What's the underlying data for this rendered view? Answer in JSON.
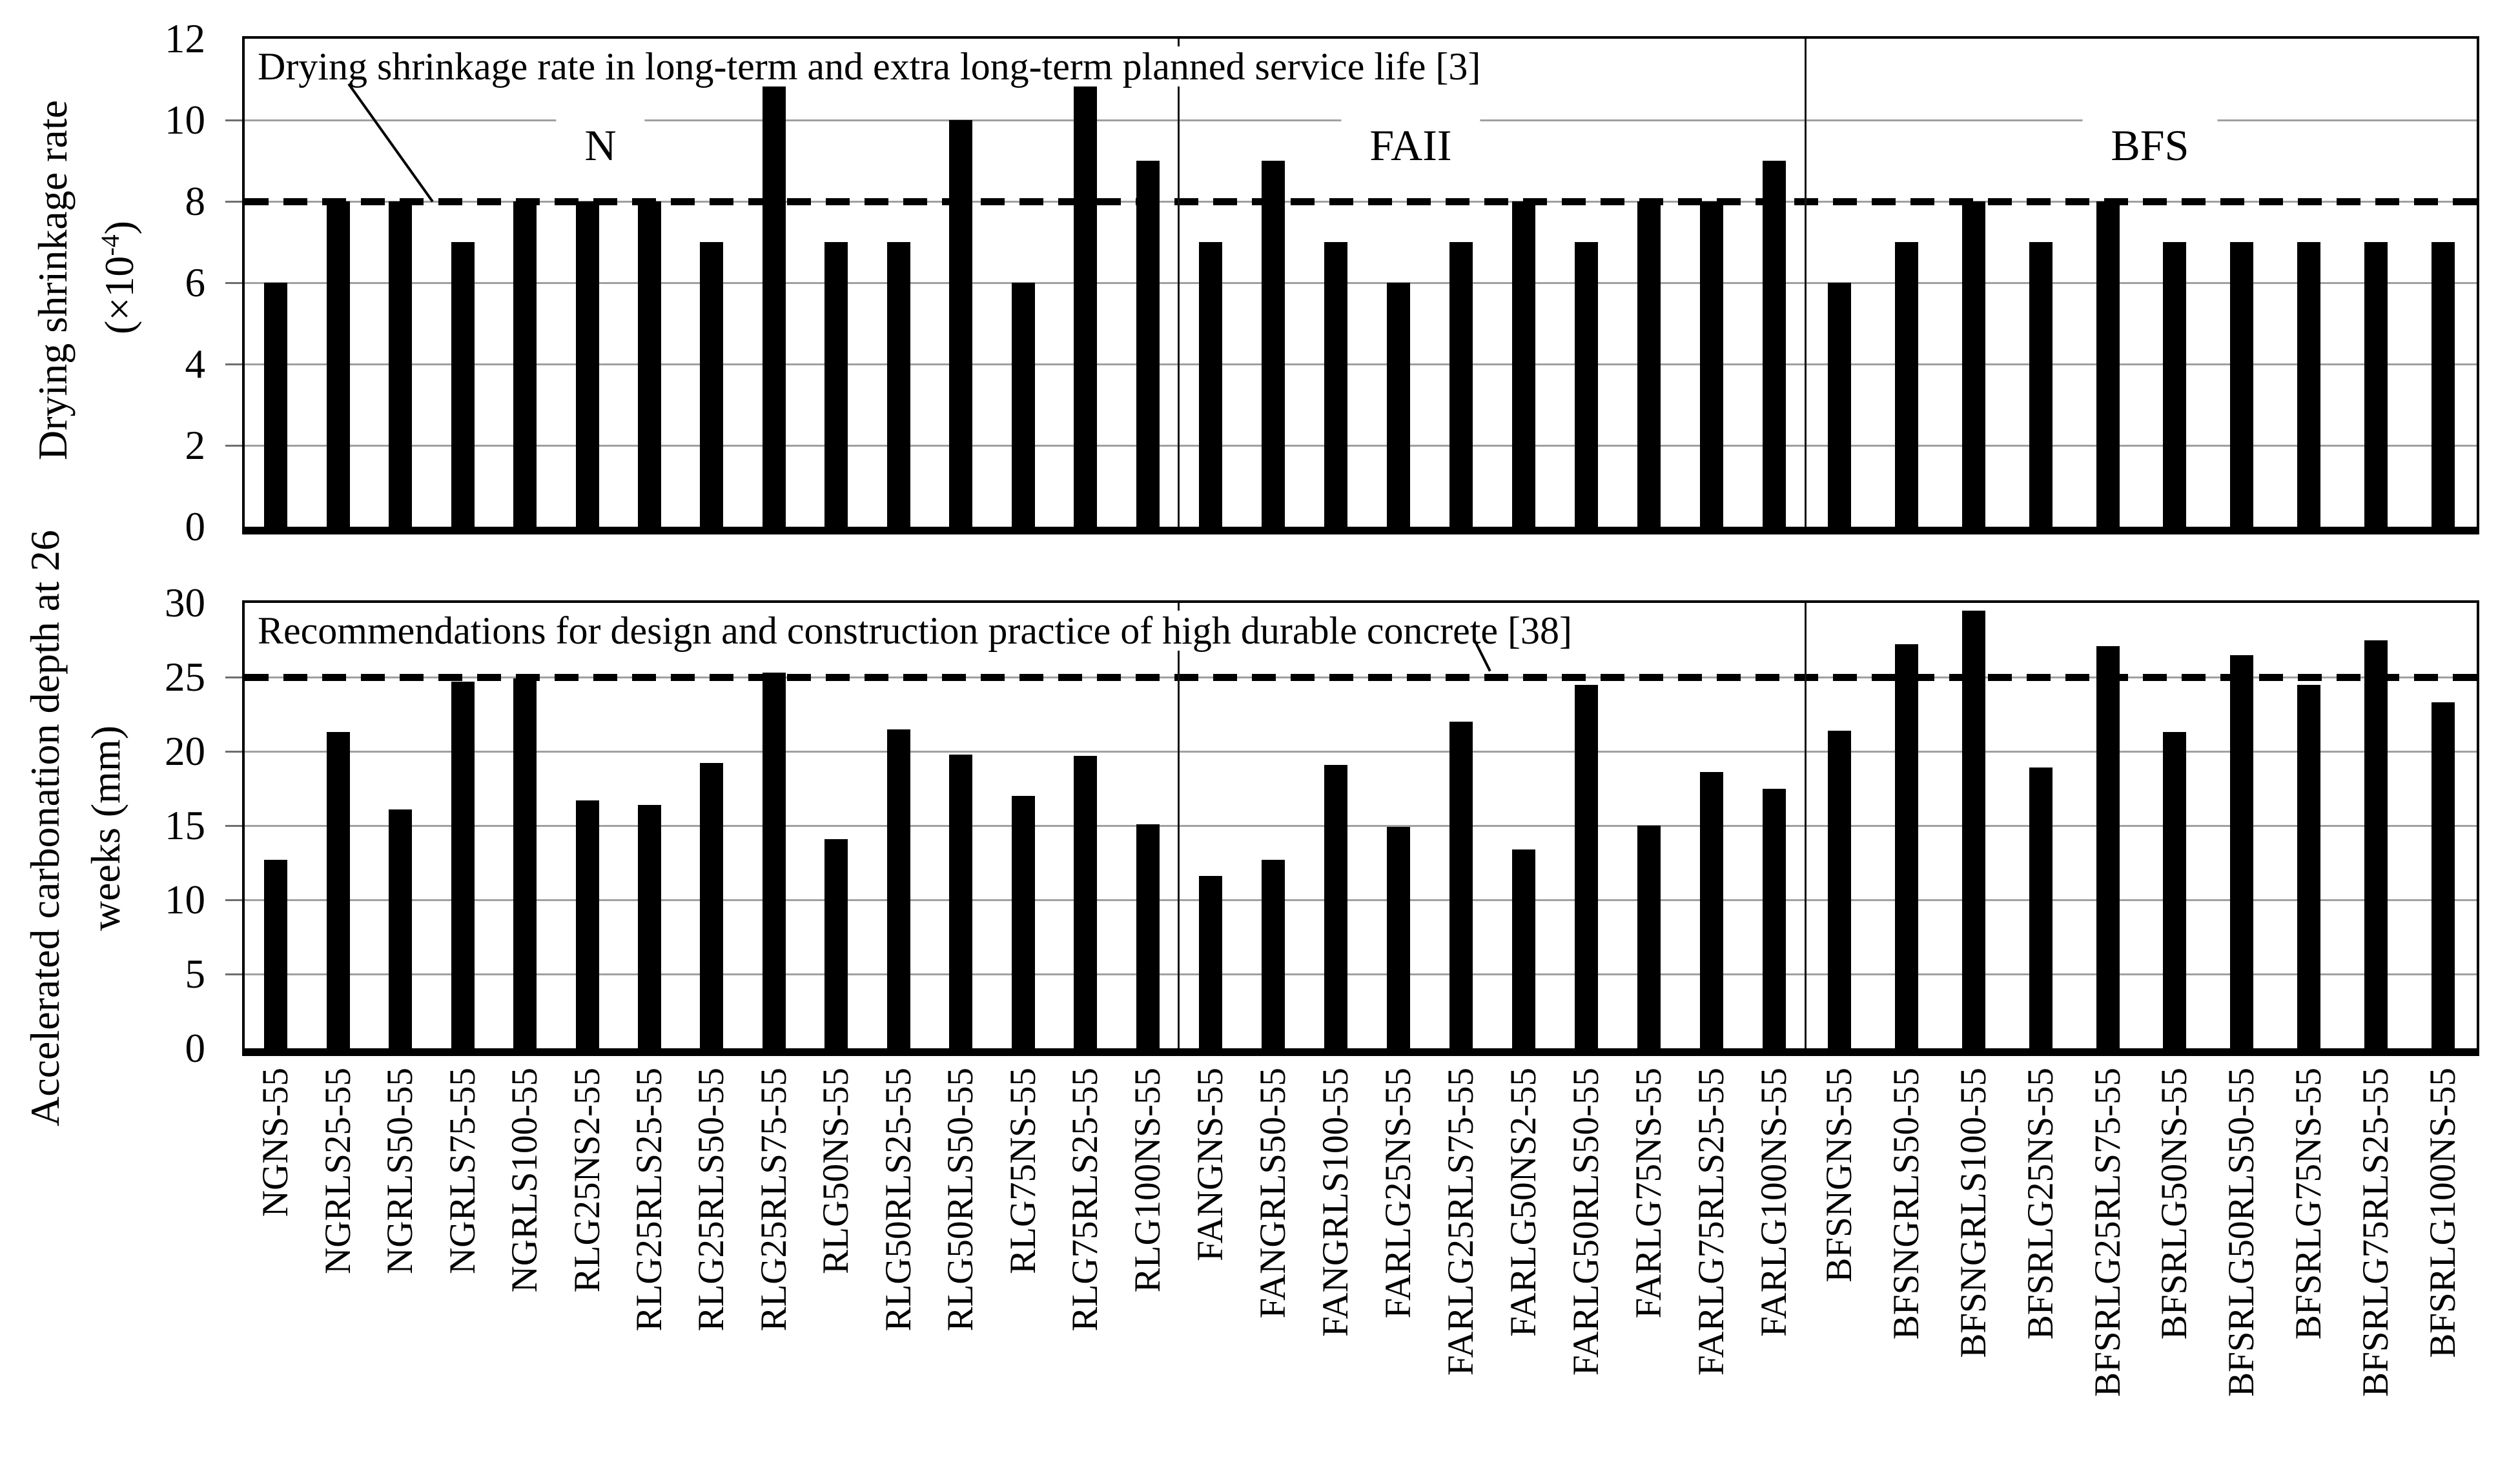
{
  "labels": {
    "top_annotation": "Drying shrinkage rate in long-term and extra long-term planned service life [3]",
    "bottom_annotation": "Recommendations for design and construction practice of high durable concrete [38]",
    "y_top": {
      "line1": "Drying shrinkage rate",
      "line2_base": "(×10",
      "line2_sup": "-4",
      "line2_close": ")"
    },
    "y_bottom": {
      "line1": "Accelerated carbonation depth at 26",
      "line2": "weeks (mm)"
    }
  },
  "colors": {
    "bar": "#000000",
    "gridline": "#a0a0a0",
    "axis": "#000000",
    "text": "#000000",
    "background": "#ffffff"
  },
  "chart_data": [
    {
      "type": "bar",
      "panel": "top",
      "title": "",
      "xlabel": "",
      "ylabel": "Drying shrinkage rate (×10⁻⁴)",
      "ylim": [
        0,
        12
      ],
      "yticks": [
        0,
        2,
        4,
        6,
        8,
        10,
        12
      ],
      "grid": true,
      "bar_color": "#000000",
      "reference_line": {
        "value": 8,
        "style": "dashed",
        "annotation": "Drying shrinkage rate in long-term and extra long-term planned service life [3]"
      },
      "groups": [
        {
          "label": "N",
          "count": 15
        },
        {
          "label": "FAII",
          "count": 10
        },
        {
          "label": "BFS",
          "count": 10
        }
      ],
      "categories": [
        "NGNS-55",
        "NGRLS25-55",
        "NGRLS50-55",
        "NGRLS75-55",
        "NGRLS100-55",
        "RLG25NS2-55",
        "RLG25RLS25-55",
        "RLG25RLS50-55",
        "RLG25RLS75-55",
        "RLG50NS-55",
        "RLG50RLS25-55",
        "RLG50RLS50-55",
        "RLG75NS-55",
        "RLG75RLS25-55",
        "RLG100NS-55",
        "FANGNS-55",
        "FANGRLS50-55",
        "FANGRLS100-55",
        "FARLG25NS-55",
        "FARLG25RLS75-55",
        "FARLG50NS2-55",
        "FARLG50RLS50-55",
        "FARLG75NS-55",
        "FARLG75RLS25-55",
        "FARLG100NS-55",
        "BFSNGNS-55",
        "BFSNGRLS50-55",
        "BFSNGRLS100-55",
        "BFSRLG25NS-55",
        "BFSRLG25RLS75-55",
        "BFSRLG50NS-55",
        "BFSRLG50RLS50-55",
        "BFSRLG75NS-55",
        "BFSRLG75RLS25-55",
        "BFSRLG100NS-55"
      ],
      "values": [
        6,
        8,
        8,
        7,
        8,
        8,
        8,
        7,
        11,
        7,
        7,
        10,
        6,
        11,
        9,
        7,
        9,
        7,
        6,
        7,
        8,
        7,
        8,
        8,
        9,
        6,
        7,
        8,
        7,
        8,
        7,
        7,
        7,
        7,
        7
      ]
    },
    {
      "type": "bar",
      "panel": "bottom",
      "title": "",
      "xlabel": "",
      "ylabel": "Accelerated carbonation depth at 26 weeks (mm)",
      "ylim": [
        0,
        30
      ],
      "yticks": [
        0,
        5,
        10,
        15,
        20,
        25,
        30
      ],
      "grid": true,
      "bar_color": "#000000",
      "reference_line": {
        "value": 25,
        "style": "dashed",
        "annotation": "Recommendations for design and construction practice of high durable concrete [38]"
      },
      "groups": [
        {
          "label": "N",
          "count": 15
        },
        {
          "label": "FAII",
          "count": 10
        },
        {
          "label": "BFS",
          "count": 10
        }
      ],
      "categories": [
        "NGNS-55",
        "NGRLS25-55",
        "NGRLS50-55",
        "NGRLS75-55",
        "NGRLS100-55",
        "RLG25NS2-55",
        "RLG25RLS25-55",
        "RLG25RLS50-55",
        "RLG25RLS75-55",
        "RLG50NS-55",
        "RLG50RLS25-55",
        "RLG50RLS50-55",
        "RLG75NS-55",
        "RLG75RLS25-55",
        "RLG100NS-55",
        "FANGNS-55",
        "FANGRLS50-55",
        "FANGRLS100-55",
        "FARLG25NS-55",
        "FARLG25RLS75-55",
        "FARLG50NS2-55",
        "FARLG50RLS50-55",
        "FARLG75NS-55",
        "FARLG75RLS25-55",
        "FARLG100NS-55",
        "BFSNGNS-55",
        "BFSNGRLS50-55",
        "BFSNGRLS100-55",
        "BFSRLG25NS-55",
        "BFSRLG25RLS75-55",
        "BFSRLG50NS-55",
        "BFSRLG50RLS50-55",
        "BFSRLG75NS-55",
        "BFSRLG75RLS25-55",
        "BFSRLG100NS-55"
      ],
      "values": [
        12.7,
        21.3,
        16.1,
        24.7,
        24.9,
        16.7,
        16.4,
        19.2,
        25.3,
        14.1,
        21.5,
        19.8,
        17.0,
        19.7,
        15.1,
        11.6,
        12.7,
        19.1,
        14.9,
        22.0,
        13.4,
        24.5,
        15.0,
        18.6,
        17.5,
        21.4,
        27.2,
        29.5,
        18.9,
        27.1,
        21.3,
        26.5,
        24.5,
        27.5,
        23.3
      ]
    }
  ]
}
